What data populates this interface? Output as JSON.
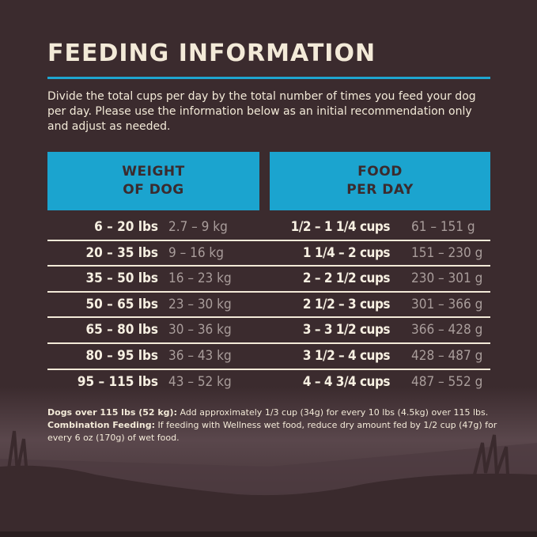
{
  "title": "FEEDING INFORMATION",
  "intro": "Divide the total cups per day by the total number of times you feed your dog per day. Please use the information below as an initial recommendation only and adjust as needed.",
  "headers": {
    "weight_l1": "WEIGHT",
    "weight_l2": "OF DOG",
    "food_l1": "FOOD",
    "food_l2": "PER DAY"
  },
  "rows": [
    {
      "lbs": "6 – 20 lbs",
      "kg": "2.7 – 9 kg",
      "cups": "1/2 – 1 1/4 cups",
      "grams": "61 – 151 g"
    },
    {
      "lbs": "20 – 35 lbs",
      "kg": "9 – 16 kg",
      "cups": "1 1/4 – 2 cups",
      "grams": "151 – 230 g"
    },
    {
      "lbs": "35 – 50 lbs",
      "kg": "16 – 23 kg",
      "cups": "2 – 2 1/2 cups",
      "grams": "230 – 301 g"
    },
    {
      "lbs": "50 – 65 lbs",
      "kg": "23 – 30 kg",
      "cups": "2 1/2 – 3 cups",
      "grams": "301 – 366 g"
    },
    {
      "lbs": "65 – 80 lbs",
      "kg": "30 – 36 kg",
      "cups": "3 – 3 1/2 cups",
      "grams": "366 – 428 g"
    },
    {
      "lbs": "80 – 95 lbs",
      "kg": "36 – 43 kg",
      "cups": "3 1/2 – 4 cups",
      "grams": "428 – 487 g"
    },
    {
      "lbs": "95 – 115 lbs",
      "kg": "43 – 52 kg",
      "cups": "4 – 4 3/4 cups",
      "grams": "487 – 552 g"
    }
  ],
  "footnote": {
    "b1": "Dogs over 115 lbs (52 kg):",
    "t1": " Add approximately 1/3 cup (34g) for every 10 lbs (4.5kg) over 115 lbs. ",
    "b2": "Combination Feeding:",
    "t2": " If feeding with Wellness wet food, reduce dry amount fed by 1/2 cup (47g) for every 6 oz (170g) of wet food."
  },
  "colors": {
    "background": "#3b2b2e",
    "accent": "#1ba4cf",
    "text": "#f3ead8",
    "muted": "#a99d9b"
  }
}
